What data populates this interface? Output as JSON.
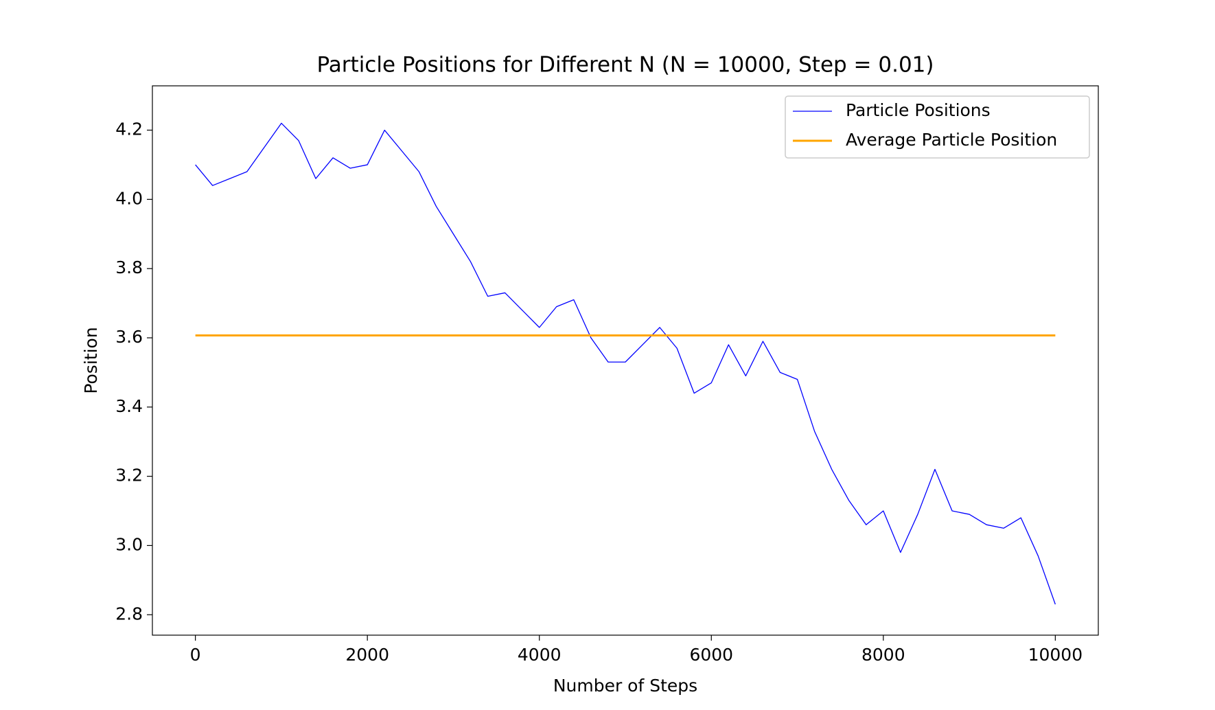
{
  "chart_data": {
    "type": "line",
    "title": "Particle Positions for Different N (N = 10000, Step = 0.01)",
    "xlabel": "Number of Steps",
    "ylabel": "Position",
    "xlim": [
      -500,
      10500
    ],
    "ylim": [
      2.741,
      4.328
    ],
    "xticks": [
      0,
      2000,
      4000,
      6000,
      8000,
      10000
    ],
    "yticks": [
      2.8,
      {
        "value": 3,
        "label": "3.0"
      },
      3.2,
      3.4,
      3.6,
      3.8,
      {
        "value": 4,
        "label": "4.0"
      },
      4.2
    ],
    "legend": "upper right",
    "series": [
      {
        "name": "Particle Positions",
        "color": "#0000ff",
        "x": [
          0,
          200,
          400,
          600,
          800,
          1000,
          1200,
          1400,
          1600,
          1800,
          2000,
          2200,
          2400,
          2600,
          2800,
          3000,
          3200,
          3400,
          3600,
          3800,
          4000,
          4200,
          4400,
          4600,
          4800,
          5000,
          5200,
          5400,
          5600,
          5800,
          6000,
          6200,
          6400,
          6600,
          6800,
          7000,
          7200,
          7400,
          7600,
          7800,
          8000,
          8200,
          8400,
          8600,
          8800,
          9000,
          9200,
          9400,
          9600,
          9800,
          10000
        ],
        "values": [
          4.1,
          4.04,
          4.06,
          4.08,
          4.15,
          4.22,
          4.17,
          4.06,
          4.12,
          4.09,
          4.1,
          4.2,
          4.14,
          4.08,
          3.98,
          3.9,
          3.82,
          3.72,
          3.73,
          3.68,
          3.63,
          3.69,
          3.71,
          3.6,
          3.53,
          3.53,
          3.58,
          3.63,
          3.57,
          3.44,
          3.47,
          3.58,
          3.49,
          3.59,
          3.5,
          3.48,
          3.33,
          3.22,
          3.13,
          3.06,
          3.1,
          2.98,
          3.09,
          3.22,
          3.1,
          3.09,
          3.06,
          3.05,
          3.08,
          2.97,
          2.83
        ]
      },
      {
        "name": "Average Particle Position",
        "color": "#ffa500",
        "x": [
          0,
          10000
        ],
        "values": [
          3.607,
          3.607
        ]
      }
    ]
  }
}
